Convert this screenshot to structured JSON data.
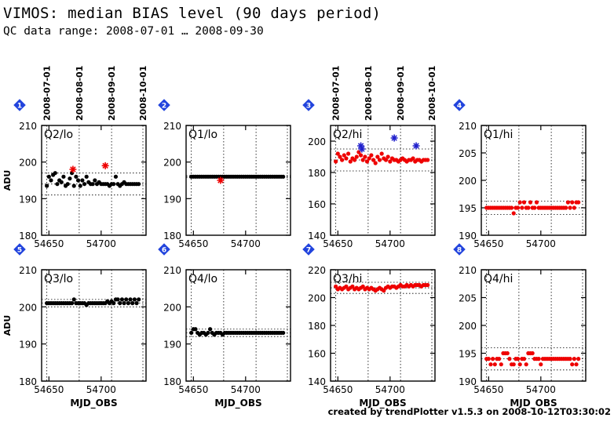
{
  "title": "VIMOS: median BIAS level (90 days period)",
  "subtitle": "QC data range: 2008-07-01 … 2008-09-30",
  "credit": "created by trendPlotter v1.5.3 on 2008-10-12T03:30:02",
  "colors": {
    "black": "#000000",
    "red": "#ee0000",
    "blue": "#2222cc",
    "badge": "#2244dd"
  },
  "chart_data": [
    {
      "type": "scatter",
      "panel": "1",
      "label": "Q2/lo",
      "ylabel": "ADU",
      "xlabel": "",
      "xlim": [
        54643,
        54743
      ],
      "ylim": [
        180,
        210
      ],
      "yticks": [
        180,
        190,
        200,
        210
      ],
      "xticks": [
        54650,
        54700
      ],
      "date_labels": [
        "2008-07-01",
        "2008-08-01",
        "2008-09-01",
        "2008-10-01"
      ],
      "date_mjd": [
        54648,
        54679,
        54710,
        54740
      ],
      "ref_lines": [
        194,
        191,
        197
      ],
      "series": [
        {
          "color": "black",
          "marker": "dot",
          "x": [
            54648,
            54650,
            54652,
            54654,
            54656,
            54658,
            54660,
            54662,
            54664,
            54666,
            54668,
            54670,
            54672,
            54674,
            54676,
            54678,
            54680,
            54682,
            54684,
            54686,
            54688,
            54690,
            54692,
            54694,
            54696,
            54698,
            54700,
            54702,
            54704,
            54706,
            54708,
            54710,
            54712,
            54714,
            54716,
            54718,
            54720,
            54722,
            54724,
            54726,
            54728,
            54730,
            54732,
            54734,
            54736
          ],
          "y": [
            193.5,
            196,
            195,
            196.5,
            197,
            194,
            195,
            194.5,
            196,
            193.5,
            194,
            195.5,
            197,
            193.5,
            196,
            195,
            193.5,
            195,
            194,
            196,
            194.5,
            194,
            194,
            195,
            194,
            194.5,
            194,
            194,
            194,
            194,
            193.5,
            194,
            194,
            196,
            194,
            193.5,
            194,
            194.5,
            194,
            194,
            194,
            194,
            194,
            194,
            194
          ]
        },
        {
          "color": "red",
          "marker": "star",
          "x": [
            54673,
            54704
          ],
          "y": [
            198,
            199
          ]
        }
      ]
    },
    {
      "type": "scatter",
      "panel": "2",
      "label": "Q1/lo",
      "ylabel": "",
      "xlabel": "",
      "xlim": [
        54643,
        54743
      ],
      "ylim": [
        180,
        210
      ],
      "yticks": [
        180,
        190,
        200,
        210
      ],
      "xticks": [
        54650,
        54700
      ],
      "date_labels": [],
      "date_mjd": [
        54648,
        54679,
        54710,
        54740
      ],
      "ref_lines": [
        196,
        196.3,
        195.7
      ],
      "series": [
        {
          "color": "black",
          "marker": "dot",
          "x": [
            54648,
            54650,
            54652,
            54654,
            54656,
            54658,
            54660,
            54662,
            54664,
            54666,
            54668,
            54670,
            54672,
            54674,
            54676,
            54678,
            54680,
            54682,
            54684,
            54686,
            54688,
            54690,
            54692,
            54694,
            54696,
            54698,
            54700,
            54702,
            54704,
            54706,
            54708,
            54710,
            54712,
            54714,
            54716,
            54718,
            54720,
            54722,
            54724,
            54726,
            54728,
            54730,
            54732,
            54734,
            54736
          ],
          "y": [
            196,
            196,
            196,
            196,
            196,
            196,
            196,
            196,
            196,
            196,
            196,
            196,
            196,
            196,
            196,
            196,
            196,
            196,
            196,
            196,
            196,
            196,
            196,
            196,
            196,
            196,
            196,
            196,
            196,
            196,
            196,
            196,
            196,
            196,
            196,
            196,
            196,
            196,
            196,
            196,
            196,
            196,
            196,
            196,
            196
          ]
        },
        {
          "color": "red",
          "marker": "star",
          "x": [
            54676
          ],
          "y": [
            195
          ]
        }
      ]
    },
    {
      "type": "scatter",
      "panel": "3",
      "label": "Q2/hi",
      "ylabel": "",
      "xlabel": "",
      "xlim": [
        54643,
        54743
      ],
      "ylim": [
        140,
        210
      ],
      "yticks": [
        140,
        160,
        180,
        200
      ],
      "xticks": [
        54650,
        54700
      ],
      "date_labels": [
        "2008-07-01",
        "2008-08-01",
        "2008-09-01",
        "2008-10-01"
      ],
      "date_mjd": [
        54648,
        54679,
        54710,
        54740
      ],
      "ref_lines": [
        188,
        181,
        195
      ],
      "series": [
        {
          "color": "red",
          "marker": "dot",
          "x": [
            54648,
            54650,
            54652,
            54654,
            54656,
            54658,
            54660,
            54662,
            54664,
            54666,
            54668,
            54670,
            54672,
            54674,
            54676,
            54678,
            54680,
            54682,
            54684,
            54686,
            54688,
            54690,
            54692,
            54694,
            54696,
            54698,
            54700,
            54702,
            54704,
            54706,
            54708,
            54710,
            54712,
            54714,
            54716,
            54718,
            54720,
            54722,
            54724,
            54726,
            54728,
            54730,
            54732,
            54734,
            54736
          ],
          "y": [
            187,
            192,
            190,
            188,
            191,
            189,
            192,
            187,
            189,
            188,
            190,
            193,
            191,
            188,
            190,
            187,
            189,
            191,
            188,
            186,
            190,
            188,
            192,
            189,
            188,
            190,
            187,
            189,
            188,
            188,
            187,
            188,
            189,
            188,
            187,
            188,
            188,
            189,
            187,
            188,
            188,
            187,
            188,
            188,
            188
          ]
        },
        {
          "color": "blue",
          "marker": "star",
          "x": [
            54672,
            54673,
            54704,
            54725
          ],
          "y": [
            197,
            195,
            202,
            197
          ]
        }
      ]
    },
    {
      "type": "scatter",
      "panel": "4",
      "label": "Q1/hi",
      "ylabel": "",
      "xlabel": "",
      "xlim": [
        54643,
        54743
      ],
      "ylim": [
        190,
        210
      ],
      "yticks": [
        190,
        195,
        200,
        205,
        210
      ],
      "xticks": [
        54650,
        54700
      ],
      "date_labels": [],
      "date_mjd": [
        54648,
        54679,
        54710,
        54740
      ],
      "ref_lines": [
        195,
        193.8,
        196.2
      ],
      "series": [
        {
          "color": "red",
          "marker": "dot",
          "x": [
            54648,
            54650,
            54652,
            54654,
            54656,
            54658,
            54660,
            54662,
            54664,
            54666,
            54668,
            54670,
            54672,
            54674,
            54676,
            54678,
            54680,
            54682,
            54684,
            54686,
            54688,
            54690,
            54692,
            54694,
            54696,
            54698,
            54700,
            54702,
            54704,
            54706,
            54708,
            54710,
            54712,
            54714,
            54716,
            54718,
            54720,
            54722,
            54724,
            54726,
            54728,
            54730,
            54732,
            54734,
            54736
          ],
          "y": [
            195,
            195,
            195,
            195,
            195,
            195,
            195,
            195,
            195,
            195,
            195,
            195,
            195,
            194,
            195,
            195,
            196,
            195,
            196,
            195,
            195,
            196,
            195,
            195,
            196,
            195,
            195,
            195,
            195,
            195,
            195,
            195,
            195,
            195,
            195,
            195,
            195,
            195,
            195,
            196,
            195,
            196,
            195,
            196,
            196
          ]
        }
      ]
    },
    {
      "type": "scatter",
      "panel": "5",
      "label": "Q3/lo",
      "ylabel": "ADU",
      "xlabel": "MJD_OBS",
      "xlim": [
        54643,
        54743
      ],
      "ylim": [
        180,
        210
      ],
      "yticks": [
        180,
        190,
        200,
        210
      ],
      "xticks": [
        54650,
        54700
      ],
      "date_labels": [],
      "date_mjd": [
        54648,
        54679,
        54710,
        54740
      ],
      "ref_lines": [
        201,
        200,
        202
      ],
      "series": [
        {
          "color": "black",
          "marker": "dot",
          "x": [
            54648,
            54650,
            54652,
            54654,
            54656,
            54658,
            54660,
            54662,
            54664,
            54666,
            54668,
            54670,
            54672,
            54674,
            54676,
            54678,
            54680,
            54682,
            54684,
            54686,
            54688,
            54690,
            54692,
            54694,
            54696,
            54698,
            54700,
            54702,
            54704,
            54706,
            54708,
            54710,
            54712,
            54714,
            54716,
            54718,
            54720,
            54722,
            54724,
            54726,
            54728,
            54730,
            54732,
            54734,
            54736
          ],
          "y": [
            201,
            201,
            201,
            201,
            201,
            201,
            201,
            201,
            201,
            201,
            201,
            201,
            201,
            202,
            201,
            201,
            201,
            201,
            201,
            200.5,
            201,
            201,
            201,
            201,
            201,
            201,
            201,
            201,
            201,
            201.5,
            201,
            201.5,
            201,
            202,
            202,
            201,
            202,
            201,
            202,
            201,
            202,
            201,
            202,
            201,
            202
          ]
        }
      ]
    },
    {
      "type": "scatter",
      "panel": "6",
      "label": "Q4/lo",
      "ylabel": "",
      "xlabel": "MJD_OBS",
      "xlim": [
        54643,
        54743
      ],
      "ylim": [
        180,
        210
      ],
      "yticks": [
        180,
        190,
        200,
        210
      ],
      "xticks": [
        54650,
        54700
      ],
      "date_labels": [],
      "date_mjd": [
        54648,
        54679,
        54710,
        54740
      ],
      "ref_lines": [
        193,
        194,
        192
      ],
      "series": [
        {
          "color": "black",
          "marker": "dot",
          "x": [
            54648,
            54650,
            54652,
            54654,
            54656,
            54658,
            54660,
            54662,
            54664,
            54666,
            54668,
            54670,
            54672,
            54674,
            54676,
            54678,
            54680,
            54682,
            54684,
            54686,
            54688,
            54690,
            54692,
            54694,
            54696,
            54698,
            54700,
            54702,
            54704,
            54706,
            54708,
            54710,
            54712,
            54714,
            54716,
            54718,
            54720,
            54722,
            54724,
            54726,
            54728,
            54730,
            54732,
            54734,
            54736
          ],
          "y": [
            193,
            194,
            194,
            193,
            192.5,
            193,
            193,
            192.5,
            193,
            194,
            193,
            192.5,
            193,
            193,
            193,
            192.5,
            193,
            193,
            193,
            193,
            193,
            193,
            193,
            193,
            193,
            193,
            193,
            193,
            193,
            193,
            193,
            193,
            193,
            193,
            193,
            193,
            193,
            193,
            193,
            193,
            193,
            193,
            193,
            193,
            193
          ]
        }
      ]
    },
    {
      "type": "scatter",
      "panel": "7",
      "label": "Q3/hi",
      "ylabel": "",
      "xlabel": "MJD_OBS",
      "xlim": [
        54643,
        54743
      ],
      "ylim": [
        140,
        220
      ],
      "yticks": [
        140,
        160,
        180,
        200,
        220
      ],
      "xticks": [
        54650,
        54700
      ],
      "date_labels": [],
      "date_mjd": [
        54648,
        54679,
        54710,
        54740
      ],
      "ref_lines": [
        207,
        211,
        203
      ],
      "series": [
        {
          "color": "red",
          "marker": "dot",
          "x": [
            54648,
            54650,
            54652,
            54654,
            54656,
            54658,
            54660,
            54662,
            54664,
            54666,
            54668,
            54670,
            54672,
            54674,
            54676,
            54678,
            54680,
            54682,
            54684,
            54686,
            54688,
            54690,
            54692,
            54694,
            54696,
            54698,
            54700,
            54702,
            54704,
            54706,
            54708,
            54710,
            54712,
            54714,
            54716,
            54718,
            54720,
            54722,
            54724,
            54726,
            54728,
            54730,
            54732,
            54734,
            54736
          ],
          "y": [
            208,
            206,
            207,
            206,
            207,
            208,
            206,
            207,
            208,
            206,
            207,
            206,
            207,
            208,
            206,
            207,
            206,
            207,
            206,
            205,
            206,
            207,
            206,
            205,
            207,
            208,
            207,
            208,
            208,
            207,
            208,
            209,
            208,
            208,
            209,
            208,
            209,
            208,
            209,
            209,
            209,
            208,
            209,
            209,
            209
          ]
        }
      ]
    },
    {
      "type": "scatter",
      "panel": "8",
      "label": "Q4/hi",
      "ylabel": "",
      "xlabel": "MJD_OBS",
      "xlim": [
        54643,
        54743
      ],
      "ylim": [
        190,
        210
      ],
      "yticks": [
        190,
        195,
        200,
        205,
        210
      ],
      "xticks": [
        54650,
        54700
      ],
      "date_labels": [],
      "date_mjd": [
        54648,
        54679,
        54710,
        54740
      ],
      "ref_lines": [
        194,
        192,
        196
      ],
      "series": [
        {
          "color": "red",
          "marker": "dot",
          "x": [
            54648,
            54650,
            54652,
            54654,
            54656,
            54658,
            54660,
            54662,
            54664,
            54666,
            54668,
            54670,
            54672,
            54674,
            54676,
            54678,
            54680,
            54682,
            54684,
            54686,
            54688,
            54690,
            54692,
            54694,
            54696,
            54698,
            54700,
            54702,
            54704,
            54706,
            54708,
            54710,
            54712,
            54714,
            54716,
            54718,
            54720,
            54722,
            54724,
            54726,
            54728,
            54730,
            54732,
            54734,
            54736
          ],
          "y": [
            194,
            194,
            193,
            194,
            193,
            194,
            194,
            193,
            195,
            195,
            195,
            194,
            193,
            193,
            194,
            194,
            193,
            194,
            194,
            193,
            195,
            195,
            195,
            194,
            194,
            194,
            193,
            194,
            194,
            194,
            194,
            194,
            194,
            194,
            194,
            194,
            194,
            194,
            194,
            194,
            194,
            193,
            194,
            193,
            194
          ]
        }
      ]
    }
  ]
}
